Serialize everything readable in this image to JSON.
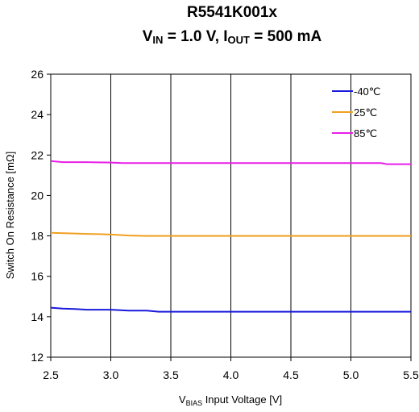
{
  "chart_data": {
    "type": "line",
    "title": {
      "line1": "R5541K001x",
      "line2_prefix": "V",
      "line2_sub1": "IN",
      "line2_mid": " = 1.0 V, I",
      "line2_sub2": "OUT",
      "line2_suffix": " = 500 mA"
    },
    "xlabel": {
      "prefix": "V",
      "sub": "BIAS",
      "suffix": " Input Voltage [V]"
    },
    "ylabel": "Switch On Resistance [mΩ]",
    "xlim": [
      2.5,
      5.5
    ],
    "ylim": [
      12,
      26
    ],
    "xticks": [
      "2.5",
      "3.0",
      "3.5",
      "4.0",
      "4.5",
      "5.0",
      "5.5"
    ],
    "yticks": [
      "12",
      "14",
      "16",
      "18",
      "20",
      "22",
      "24",
      "26"
    ],
    "grid": "vertical",
    "legend_position": "top-right",
    "series": [
      {
        "name": "-40℃",
        "color": "#1a1adc",
        "x": [
          2.5,
          2.6,
          2.7,
          2.8,
          3.0,
          3.15,
          3.3,
          3.4,
          3.6,
          4.0,
          4.5,
          5.0,
          5.5
        ],
        "y": [
          14.45,
          14.4,
          14.38,
          14.35,
          14.35,
          14.3,
          14.3,
          14.25,
          14.25,
          14.25,
          14.25,
          14.25,
          14.25
        ]
      },
      {
        "name": "25℃",
        "color": "#f0a020",
        "x": [
          2.5,
          2.7,
          2.8,
          2.95,
          3.05,
          3.15,
          3.3,
          4.0,
          4.5,
          5.0,
          5.5
        ],
        "y": [
          18.15,
          18.12,
          18.1,
          18.08,
          18.05,
          18.02,
          18.0,
          18.0,
          18.0,
          18.0,
          18.0
        ]
      },
      {
        "name": "85℃",
        "color": "#e81ee8",
        "x": [
          2.5,
          2.6,
          2.8,
          3.0,
          3.1,
          3.5,
          4.0,
          4.5,
          5.0,
          5.25,
          5.3,
          5.5
        ],
        "y": [
          21.7,
          21.65,
          21.65,
          21.63,
          21.6,
          21.6,
          21.6,
          21.6,
          21.6,
          21.6,
          21.55,
          21.55
        ]
      }
    ]
  }
}
